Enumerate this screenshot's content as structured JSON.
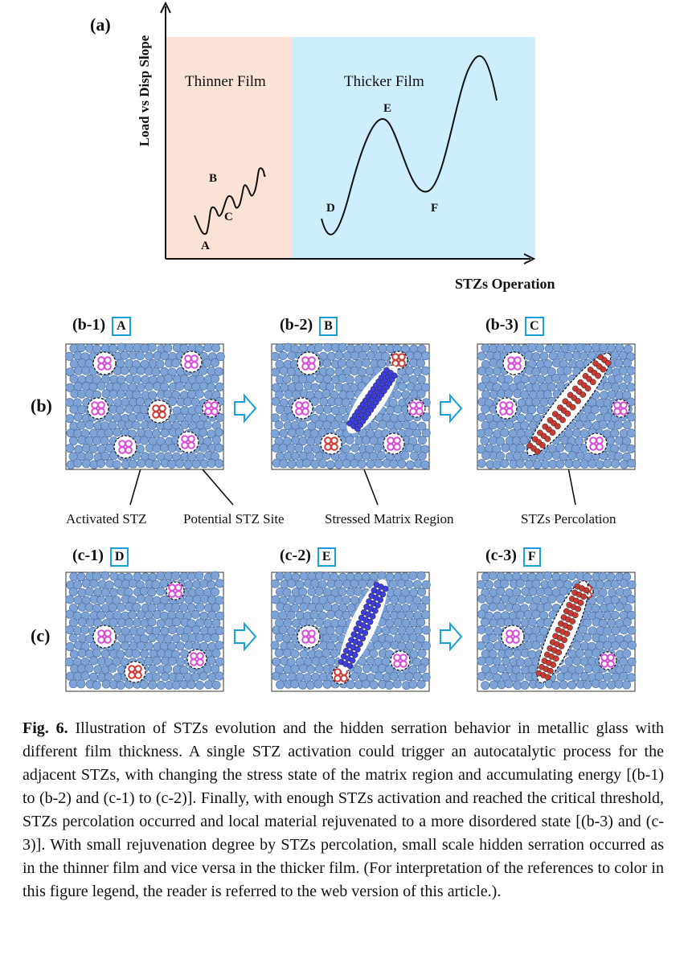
{
  "panel_a": {
    "label": "(a)",
    "y_axis_label": "Load vs Disp Slope",
    "x_axis_label": "STZs Operation",
    "regions": [
      {
        "name": "Thinner Film",
        "color": "#fbe2d6"
      },
      {
        "name": "Thicker Film",
        "color": "#cfeefc"
      }
    ],
    "points": [
      "A",
      "B",
      "C",
      "D",
      "E",
      "F"
    ]
  },
  "row_b": {
    "label": "(b)",
    "panels": [
      {
        "label": "(b-1)",
        "state": "A"
      },
      {
        "label": "(b-2)",
        "state": "B"
      },
      {
        "label": "(b-3)",
        "state": "C"
      }
    ]
  },
  "row_c": {
    "label": "(c)",
    "panels": [
      {
        "label": "(c-1)",
        "state": "D"
      },
      {
        "label": "(c-2)",
        "state": "E"
      },
      {
        "label": "(c-3)",
        "state": "F"
      }
    ]
  },
  "annotations": [
    "Activated STZ",
    "Potential STZ Site",
    "Stressed Matrix Region",
    "STZs Percolation"
  ],
  "colors": {
    "matrix_atom": "#7ea3d6",
    "potential_stz": "#d94bd9",
    "activated_stz": "#c83a32",
    "stressed": "#3d3de0",
    "box_border": "#1aa0d8"
  },
  "caption": {
    "fig_label": "Fig. 6.",
    "text": "Illustration of STZs evolution and the hidden serration behavior in metallic glass with different film thickness. A single STZ activation could trigger an autocatalytic process for the adjacent STZs, with changing the stress state of the matrix region and accumulating energy [(b-1) to (b-2) and (c-1) to (c-2)]. Finally, with enough STZs activation and reached the critical threshold, STZs percolation occurred and local material rejuvenated to a more disordered state [(b-3) and (c-3)]. With small rejuvenation degree by STZs percolation, small scale hidden serration occurred as in the thinner film and vice versa in the thicker film. (For interpretation of the references to color in this figure legend, the reader is referred to the web version of this article.)."
  }
}
